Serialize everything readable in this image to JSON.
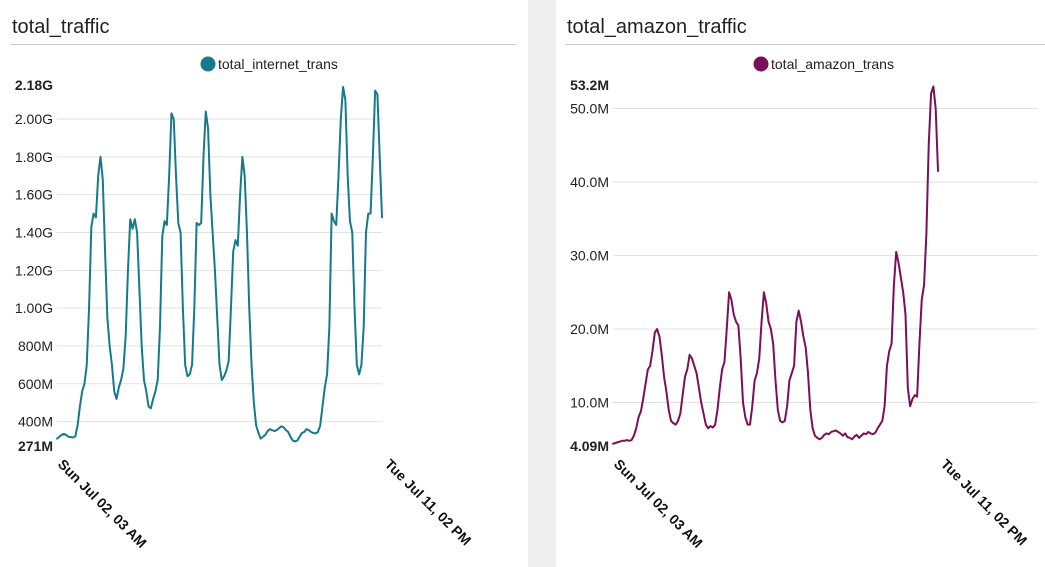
{
  "panels": [
    {
      "title": "total_traffic",
      "legend_label": "total_internet_trans",
      "color": "#157a8a"
    },
    {
      "title": "total_amazon_traffic",
      "legend_label": "total_amazon_trans",
      "color": "#7a0f5a"
    }
  ],
  "chart_data": [
    {
      "type": "line",
      "title": "total_traffic",
      "xlabel": "",
      "ylabel": "",
      "x_tick_labels": [
        "Sun Jul 02, 03 AM",
        "Tue Jul 11, 02 PM"
      ],
      "y_ticks": [
        {
          "value": 271,
          "label": "271M",
          "bold": true
        },
        {
          "value": 400,
          "label": "400M"
        },
        {
          "value": 600,
          "label": "600M"
        },
        {
          "value": 800,
          "label": "800M"
        },
        {
          "value": 1000,
          "label": "1.00G"
        },
        {
          "value": 1200,
          "label": "1.20G"
        },
        {
          "value": 1400,
          "label": "1.40G"
        },
        {
          "value": 1600,
          "label": "1.60G"
        },
        {
          "value": 1800,
          "label": "1.80G"
        },
        {
          "value": 2000,
          "label": "2.00G"
        },
        {
          "value": 2180,
          "label": "2.18G",
          "bold": true
        }
      ],
      "ylim": [
        271,
        2180
      ],
      "unit": "M",
      "grid": true,
      "legend_position": "top",
      "series": [
        {
          "name": "total_internet_trans",
          "color": "#157a8a",
          "values": [
            310,
            320,
            330,
            335,
            330,
            320,
            318,
            316,
            322,
            380,
            480,
            560,
            600,
            700,
            1000,
            1430,
            1500,
            1480,
            1700,
            1800,
            1680,
            1300,
            950,
            800,
            700,
            560,
            520,
            580,
            620,
            680,
            850,
            1200,
            1470,
            1420,
            1470,
            1400,
            1100,
            800,
            620,
            560,
            480,
            470,
            520,
            560,
            620,
            900,
            1380,
            1460,
            1440,
            1700,
            2030,
            2000,
            1700,
            1450,
            1400,
            1000,
            700,
            640,
            650,
            700,
            1000,
            1450,
            1440,
            1450,
            1800,
            2040,
            1950,
            1600,
            1400,
            1200,
            950,
            700,
            620,
            640,
            670,
            720,
            1000,
            1300,
            1360,
            1330,
            1600,
            1800,
            1700,
            1400,
            1000,
            700,
            500,
            380,
            340,
            310,
            320,
            330,
            350,
            360,
            355,
            350,
            355,
            365,
            375,
            370,
            355,
            345,
            320,
            300,
            295,
            300,
            320,
            340,
            345,
            360,
            355,
            345,
            340,
            338,
            345,
            380,
            480,
            580,
            650,
            900,
            1500,
            1460,
            1440,
            1700,
            2000,
            2170,
            2100,
            1700,
            1460,
            1400,
            1000,
            700,
            650,
            700,
            900,
            1400,
            1500,
            1500,
            1800,
            2150,
            2130,
            1800,
            1480
          ]
        }
      ]
    },
    {
      "type": "line",
      "title": "total_amazon_traffic",
      "xlabel": "",
      "ylabel": "",
      "x_tick_labels": [
        "Sun Jul 02, 03 AM",
        "Tue Jul 11, 02 PM"
      ],
      "y_ticks": [
        {
          "value": 4.09,
          "label": "4.09M",
          "bold": true
        },
        {
          "value": 10,
          "label": "10.0M"
        },
        {
          "value": 20,
          "label": "20.0M"
        },
        {
          "value": 30,
          "label": "30.0M"
        },
        {
          "value": 40,
          "label": "40.0M"
        },
        {
          "value": 50,
          "label": "50.0M"
        },
        {
          "value": 53.2,
          "label": "53.2M",
          "bold": true
        }
      ],
      "ylim": [
        4.09,
        53.2
      ],
      "unit": "M",
      "grid": true,
      "legend_position": "top",
      "series": [
        {
          "name": "total_amazon_trans",
          "color": "#7a0f5a",
          "values": [
            4.4,
            4.5,
            4.6,
            4.7,
            4.8,
            4.8,
            4.9,
            4.8,
            4.9,
            5.5,
            6.5,
            8.0,
            8.8,
            10.5,
            12.5,
            14.5,
            15.0,
            17.0,
            19.5,
            20.0,
            19.0,
            16.5,
            13.5,
            11.5,
            9.0,
            7.5,
            7.2,
            7.0,
            7.5,
            8.5,
            11.0,
            13.5,
            14.5,
            16.5,
            16.0,
            15.0,
            14.0,
            12.0,
            10.0,
            8.5,
            7.0,
            6.5,
            6.8,
            6.6,
            7.0,
            9.0,
            12.0,
            14.5,
            15.5,
            20.0,
            25.0,
            24.0,
            22.0,
            21.0,
            20.5,
            16.0,
            10.0,
            8.0,
            7.0,
            7.0,
            9.5,
            13.0,
            14.0,
            16.0,
            21.0,
            25.0,
            23.5,
            21.0,
            20.0,
            18.0,
            13.0,
            9.0,
            7.5,
            7.3,
            7.5,
            9.5,
            13.0,
            14.0,
            15.0,
            21.0,
            22.5,
            21.0,
            19.0,
            17.5,
            14.0,
            9.0,
            6.5,
            5.5,
            5.2,
            5.0,
            5.2,
            5.6,
            5.8,
            5.7,
            6.0,
            6.1,
            6.2,
            6.0,
            5.8,
            5.5,
            5.8,
            5.3,
            5.2,
            5.0,
            5.4,
            5.6,
            5.2,
            5.5,
            5.8,
            5.7,
            6.0,
            5.8,
            5.7,
            5.9,
            6.5,
            7.0,
            7.5,
            9.5,
            15.0,
            17.0,
            18.0,
            26.0,
            30.5,
            29.0,
            27.0,
            25.0,
            22.0,
            12.0,
            9.5,
            10.5,
            11.0,
            10.8,
            18.0,
            24.0,
            26.0,
            33.0,
            45.0,
            52.0,
            53.0,
            50.0,
            41.5
          ]
        }
      ]
    }
  ]
}
